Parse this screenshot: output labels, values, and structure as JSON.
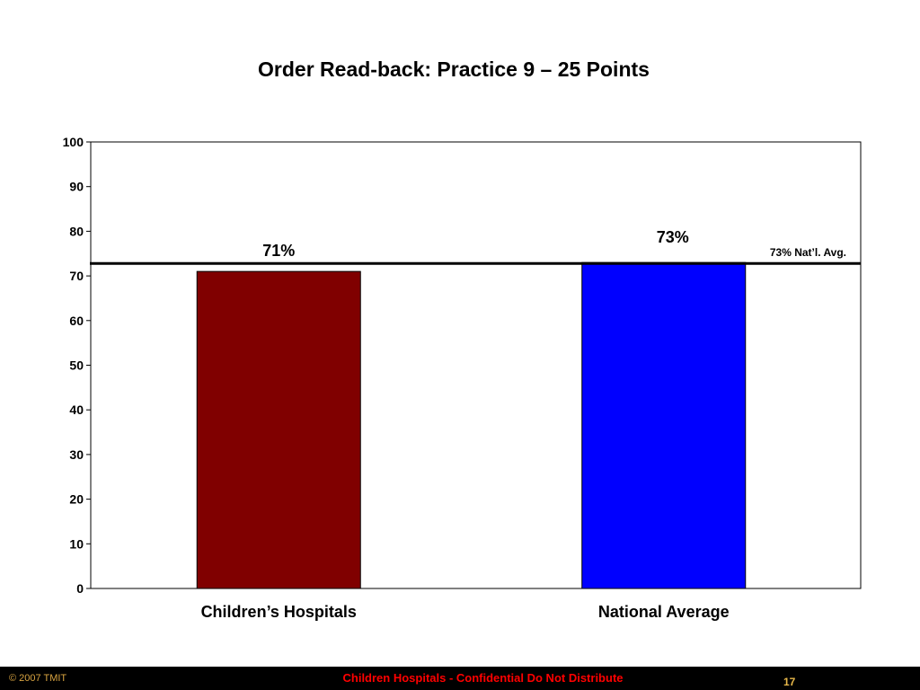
{
  "colors": {
    "background": "#ffffff",
    "bar_childrens": "#800000",
    "bar_national": "#0000ff",
    "footer_bg": "#000000",
    "footer_left_text": "#d9a441",
    "footer_center_text": "#ff0000",
    "page_number_text": "#e8b84a"
  },
  "footer": {
    "left": "© 2007 TMIT",
    "center": "Children Hospitals - Confidential Do Not Distribute",
    "page_number": "17"
  },
  "chart_data": {
    "type": "bar",
    "title": "Order Read-back: Practice 9 – 25 Points",
    "xlabel": "",
    "ylabel": "",
    "ylim": [
      0,
      100
    ],
    "yticks": [
      0,
      10,
      20,
      30,
      40,
      50,
      60,
      70,
      80,
      90,
      100
    ],
    "categories": [
      "Children’s Hospitals",
      "National Average"
    ],
    "values": [
      71,
      73
    ],
    "data_labels": [
      "71%",
      "73%"
    ],
    "bar_colors": [
      "#800000",
      "#0000ff"
    ],
    "reference_line": {
      "value": 73,
      "label": "73% Nat’l. Avg."
    },
    "grid": false,
    "legend": "none"
  }
}
